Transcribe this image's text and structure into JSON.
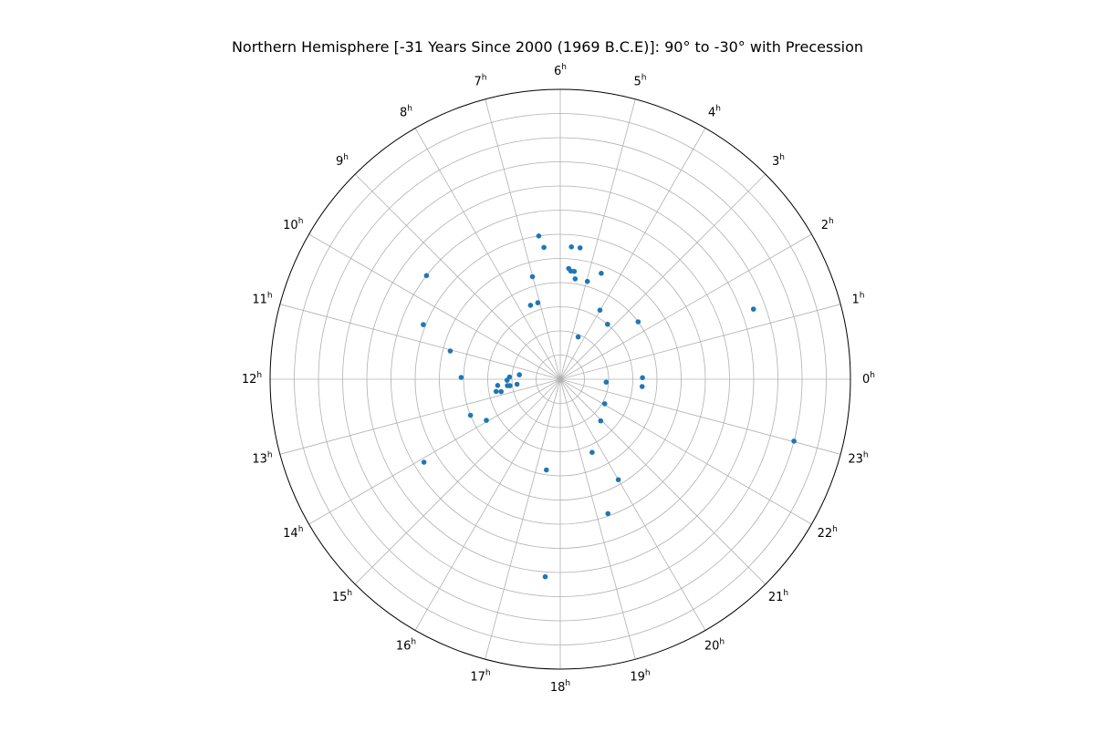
{
  "chart_data": {
    "type": "scatter",
    "projection": "polar",
    "title": "Northern Hemisphere [-31 Years Since 2000 (1969 B.C.E)]: 90° to -30° with Precession",
    "theta_unit": "h",
    "theta_ticks": [
      "0",
      "1",
      "2",
      "3",
      "4",
      "5",
      "6",
      "7",
      "8",
      "9",
      "10",
      "11",
      "12",
      "13",
      "14",
      "15",
      "16",
      "17",
      "18",
      "19",
      "20",
      "21",
      "22",
      "23"
    ],
    "radial_range": [
      90,
      -30
    ],
    "radial_gridlines": [
      80,
      70,
      60,
      50,
      40,
      30,
      20,
      10,
      0,
      -10,
      -20
    ],
    "grid": true,
    "marker_color": "#1f77b4",
    "series": [
      {
        "points": [
          {
            "ra": 11.58,
            "dec": 73
          },
          {
            "ra": 11.83,
            "dec": 69
          },
          {
            "ra": 12.07,
            "dec": 68
          },
          {
            "ra": 12.49,
            "dec": 69
          },
          {
            "ra": 12.38,
            "dec": 64
          },
          {
            "ra": 12.72,
            "dec": 63
          },
          {
            "ra": 12.79,
            "dec": 65
          },
          {
            "ra": 12.44,
            "dec": 72
          },
          {
            "ra": 12.46,
            "dec": 68
          },
          {
            "ra": 11.93,
            "dec": 49
          },
          {
            "ra": 11.04,
            "dec": 43
          },
          {
            "ra": 10.55,
            "dec": 29
          },
          {
            "ra": 13.46,
            "dec": 50
          },
          {
            "ra": 13.94,
            "dec": 55
          },
          {
            "ra": 14.09,
            "dec": 24
          },
          {
            "ra": 17.71,
            "dec": 8
          },
          {
            "ra": 17.42,
            "dec": 52
          },
          {
            "ra": 20.0,
            "dec": 42
          },
          {
            "ra": 20.94,
            "dec": 66
          },
          {
            "ra": 19.3,
            "dec": 31
          },
          {
            "ra": 19.57,
            "dec": 57
          },
          {
            "ra": 22.07,
            "dec": 69
          },
          {
            "ra": 23.76,
            "dec": 71
          },
          {
            "ra": 23.66,
            "dec": 56
          },
          {
            "ra": 0.07,
            "dec": 56
          },
          {
            "ra": 23.01,
            "dec": -10
          },
          {
            "ra": 1.33,
            "dec": 5
          },
          {
            "ra": 2.43,
            "dec": 50
          },
          {
            "ra": 3.29,
            "dec": 60
          },
          {
            "ra": 4.47,
            "dec": 71
          },
          {
            "ra": 4.01,
            "dec": 57
          },
          {
            "ra": 4.97,
            "dec": 48
          },
          {
            "ra": 4.59,
            "dec": 43
          },
          {
            "ra": 5.43,
            "dec": 35
          },
          {
            "ra": 5.44,
            "dec": 48
          },
          {
            "ra": 5.71,
            "dec": 44
          },
          {
            "ra": 5.51,
            "dec": 45
          },
          {
            "ra": 5.63,
            "dec": 45
          },
          {
            "ra": 5.68,
            "dec": 35
          },
          {
            "ra": 6.47,
            "dec": 35
          },
          {
            "ra": 6.57,
            "dec": 30
          },
          {
            "ra": 7.01,
            "dec": 46
          },
          {
            "ra": 7.09,
            "dec": 57
          },
          {
            "ra": 7.46,
            "dec": 57
          },
          {
            "ra": 9.48,
            "dec": 20
          }
        ]
      }
    ]
  }
}
